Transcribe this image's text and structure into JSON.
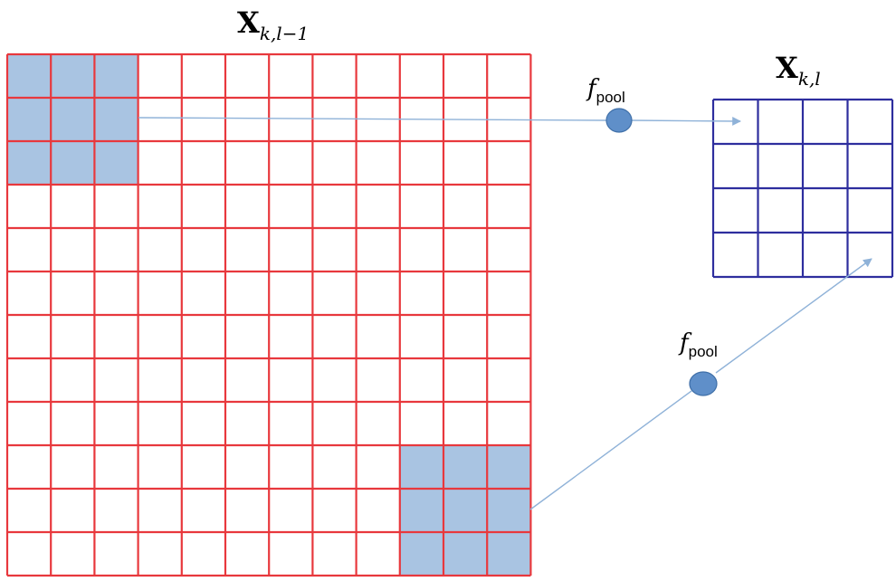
{
  "colors": {
    "input_grid": "#e8383d",
    "output_grid": "#2e2e9e",
    "highlight_fill": "#a9c4e2",
    "node_fill": "#5f8fc9",
    "node_stroke": "#3f6fa8",
    "arrow": "#8fb2d8"
  },
  "input_map": {
    "label_main": "X",
    "label_sub": "k,l−1",
    "rows": 12,
    "cols": 12
  },
  "output_map": {
    "label_main": "X",
    "label_sub": "k,l",
    "rows": 4,
    "cols": 4
  },
  "pool_nodes": [
    {
      "label_main": "f",
      "label_sub": "pool"
    },
    {
      "label_main": "f",
      "label_sub": "pool"
    }
  ],
  "highlight_windows": [
    {
      "rows": [
        0,
        2
      ],
      "cols": [
        0,
        2
      ]
    },
    {
      "rows": [
        9,
        11
      ],
      "cols": [
        9,
        11
      ]
    }
  ]
}
